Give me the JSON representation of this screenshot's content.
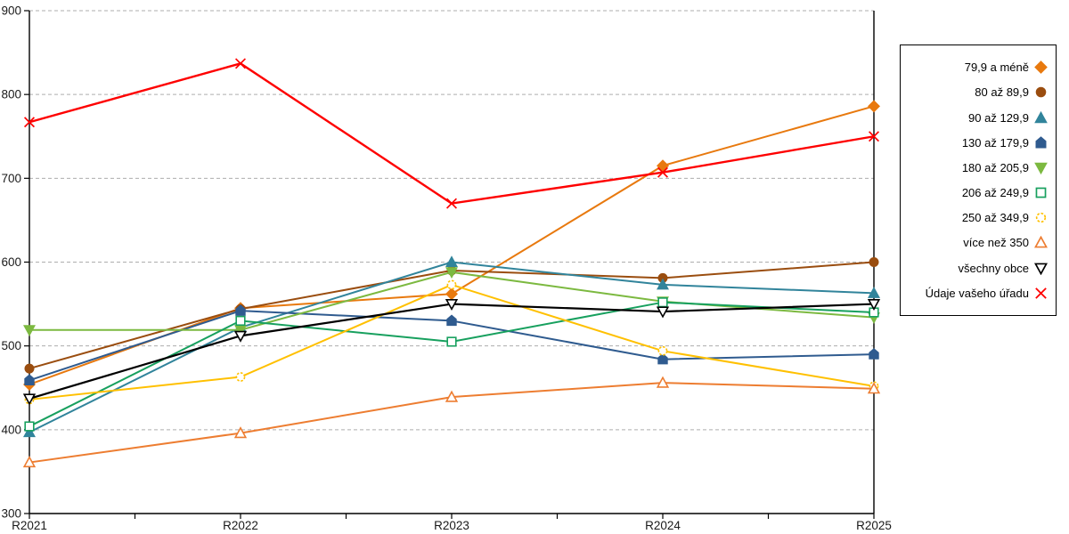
{
  "chart_data": {
    "type": "line",
    "title": "",
    "xlabel": "",
    "ylabel": "",
    "categories": [
      "R2021",
      "R2022",
      "R2023",
      "R2024",
      "R2025"
    ],
    "ylim": [
      300,
      900
    ],
    "ytick_step": 100,
    "grid": "horizontal-dashed",
    "legend_position": "right",
    "series": [
      {
        "name": "79,9 a méně",
        "marker": "diamond",
        "fill": "solid",
        "color": "#E8790E",
        "values": [
          454,
          545,
          562,
          715,
          786
        ]
      },
      {
        "name": "80 až 89,9",
        "marker": "circle",
        "fill": "solid",
        "color": "#9A4D0F",
        "values": [
          473,
          544,
          590,
          581,
          600
        ]
      },
      {
        "name": "90 až 129,9",
        "marker": "triangle-up",
        "fill": "solid",
        "color": "#31849B",
        "values": [
          397,
          522,
          600,
          573,
          563
        ]
      },
      {
        "name": "130 až 179,9",
        "marker": "pentagon",
        "fill": "solid",
        "color": "#2F5B8F",
        "values": [
          459,
          542,
          530,
          484,
          490
        ]
      },
      {
        "name": "180 až 205,9",
        "marker": "triangle-down",
        "fill": "solid",
        "color": "#7CB940",
        "values": [
          519,
          519,
          588,
          553,
          534
        ]
      },
      {
        "name": "206 až 249,9",
        "marker": "square",
        "fill": "open",
        "color": "#17A05E",
        "values": [
          404,
          530,
          505,
          552,
          540
        ]
      },
      {
        "name": "250 až 349,9",
        "marker": "circle-dashed",
        "fill": "open",
        "color": "#FFC000",
        "values": [
          436,
          463,
          573,
          494,
          452
        ]
      },
      {
        "name": "více než 350",
        "marker": "triangle-up",
        "fill": "open",
        "color": "#ED7D31",
        "values": [
          361,
          396,
          439,
          456,
          449
        ]
      },
      {
        "name": "všechny obce",
        "marker": "triangle-down",
        "fill": "open",
        "color": "#000000",
        "values": [
          437,
          512,
          550,
          541,
          550
        ]
      },
      {
        "name": "Údaje vašeho úřadu",
        "marker": "x",
        "fill": "open",
        "color": "#FE0000",
        "values": [
          767,
          837,
          670,
          707,
          750
        ]
      }
    ],
    "colors": {
      "grid": "#ADADAD",
      "axis": "#000000",
      "background": "#FFFFFF"
    }
  }
}
